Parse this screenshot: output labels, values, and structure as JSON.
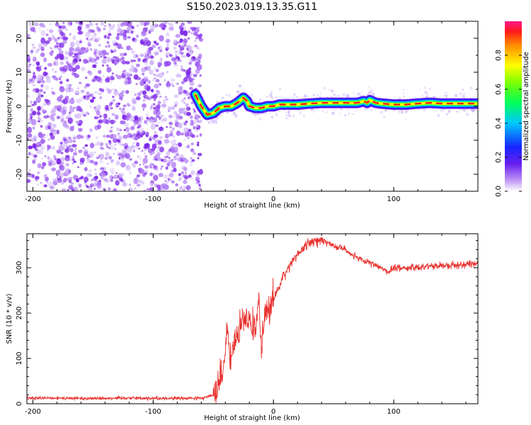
{
  "title": "S150.2023.019.13.35.G11",
  "colors": {
    "snr_line": "#e8302c",
    "scatter_purple": "#7a22e6",
    "ridge_core": "#ff1a1a"
  },
  "colorbar": {
    "label": "Normalized spectral amplitude",
    "ticks": [
      "0.0",
      "0.2",
      "0.4",
      "0.6",
      "0.8"
    ],
    "tick_values": [
      0.0,
      0.2,
      0.4,
      0.6,
      0.8
    ],
    "range": [
      0,
      1
    ],
    "colormap": "rainbow (white/violet at 0 to red/magenta at 1)"
  },
  "chart_data": [
    {
      "type": "heatmap",
      "xlabel": "Height of straight line (km)",
      "ylabel": "Frequency (Hz)",
      "xlim": [
        -205,
        170
      ],
      "ylim": [
        -25,
        25
      ],
      "xticks": [
        -200,
        -100,
        0,
        100
      ],
      "xtick_labels": [
        "-200",
        "-100",
        "0",
        "100"
      ],
      "yticks": [
        -20,
        -10,
        0,
        10,
        20
      ],
      "ytick_labels": [
        "-20",
        "-10",
        "0",
        "10",
        "20"
      ],
      "noise_region_x": [
        -205,
        -60
      ],
      "ridge": {
        "x": [
          -65,
          -60,
          -55,
          -50,
          -45,
          -40,
          -35,
          -30,
          -25,
          -22,
          -20,
          -15,
          -10,
          -5,
          0,
          5,
          10,
          20,
          30,
          40,
          50,
          60,
          70,
          75,
          78,
          80,
          85,
          90,
          100,
          110,
          120,
          130,
          140,
          150,
          160,
          170
        ],
        "y": [
          3.5,
          0,
          -2.5,
          -2.0,
          -0.5,
          0.0,
          0.0,
          1.0,
          2.5,
          1.5,
          0.0,
          -0.5,
          -0.5,
          0.0,
          0.0,
          0.5,
          0.5,
          0.5,
          0.8,
          1.0,
          1.0,
          1.0,
          1.0,
          1.5,
          1.0,
          1.8,
          1.0,
          0.8,
          0.5,
          0.5,
          0.8,
          1.0,
          0.8,
          0.8,
          0.8,
          0.8
        ]
      }
    },
    {
      "type": "line",
      "xlabel": "Height of straight line (km)",
      "ylabel": "SNR (10 * v/v)",
      "xlim": [
        -205,
        170
      ],
      "ylim": [
        0,
        375
      ],
      "xticks": [
        -200,
        -100,
        0,
        100
      ],
      "xtick_labels": [
        "-200",
        "-100",
        "0",
        "100"
      ],
      "yticks": [
        0,
        100,
        200,
        300
      ],
      "ytick_labels": [
        "0",
        "100",
        "200",
        "300"
      ],
      "series": [
        {
          "x": [
            -205,
            -180,
            -150,
            -120,
            -100,
            -80,
            -60,
            -50,
            -45,
            -40,
            -38,
            -36,
            -34,
            -30,
            -25,
            -20,
            -15,
            -12,
            -10,
            -8,
            -5,
            0,
            5,
            10,
            15,
            20,
            25,
            30,
            35,
            40,
            45,
            50,
            60,
            70,
            80,
            90,
            95,
            100,
            110,
            120,
            130,
            140,
            150,
            160,
            170
          ],
          "values": [
            12,
            12,
            12,
            13,
            12,
            12,
            12,
            20,
            45,
            100,
            170,
            90,
            120,
            150,
            180,
            190,
            170,
            230,
            120,
            200,
            200,
            230,
            260,
            290,
            310,
            330,
            345,
            355,
            360,
            360,
            355,
            350,
            340,
            320,
            310,
            300,
            290,
            300,
            300,
            300,
            305,
            305,
            305,
            308,
            310
          ]
        }
      ]
    }
  ]
}
